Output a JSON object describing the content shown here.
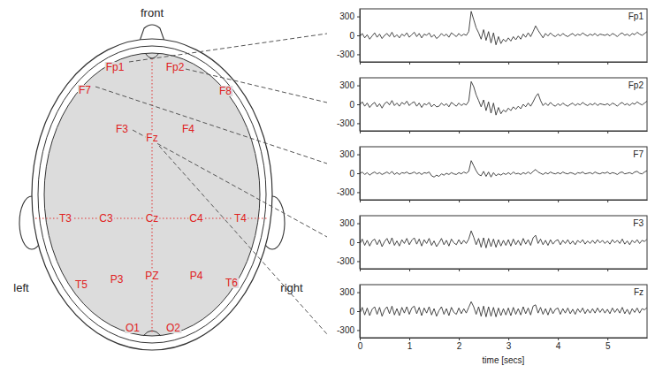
{
  "diagram": {
    "front": "front",
    "left": "left",
    "right": "right",
    "electrodes": [
      "Fp1",
      "Fp2",
      "F7",
      "F8",
      "F3",
      "Fz",
      "F4",
      "T3",
      "C3",
      "Cz",
      "C4",
      "T4",
      "T5",
      "P3",
      "PZ",
      "P4",
      "T6",
      "O1",
      "O2"
    ]
  },
  "chart_data": [
    {
      "type": "line",
      "title": "Fp1",
      "color": "#333333",
      "x": [
        0,
        0.05,
        0.1,
        0.15,
        0.2,
        0.25,
        0.3,
        0.35,
        0.4,
        0.45,
        0.5,
        0.55,
        0.6,
        0.65,
        0.7,
        0.75,
        0.8,
        0.85,
        0.9,
        0.95,
        1,
        1.05,
        1.1,
        1.15,
        1.2,
        1.25,
        1.3,
        1.35,
        1.4,
        1.45,
        1.5,
        1.55,
        1.6,
        1.65,
        1.7,
        1.75,
        1.8,
        1.85,
        1.9,
        1.95,
        2,
        2.05,
        2.1,
        2.15,
        2.2,
        2.25,
        2.3,
        2.35,
        2.4,
        2.45,
        2.5,
        2.55,
        2.6,
        2.65,
        2.7,
        2.75,
        2.8,
        2.85,
        2.9,
        2.95,
        3,
        3.05,
        3.1,
        3.15,
        3.2,
        3.25,
        3.3,
        3.35,
        3.4,
        3.45,
        3.5,
        3.55,
        3.6,
        3.65,
        3.7,
        3.75,
        3.8,
        3.85,
        3.9,
        3.95,
        4,
        4.05,
        4.1,
        4.15,
        4.2,
        4.25,
        4.3,
        4.35,
        4.4,
        4.45,
        4.5,
        4.55,
        4.6,
        4.65,
        4.7,
        4.75,
        4.8,
        4.85,
        4.9,
        4.95,
        5,
        5.05,
        5.1,
        5.15,
        5.2,
        5.25,
        5.3,
        5.35,
        5.4,
        5.45,
        5.5,
        5.55,
        5.6,
        5.65,
        5.7,
        5.75,
        5.8
      ],
      "values": [
        -20,
        30,
        -40,
        10,
        -60,
        -10,
        40,
        -30,
        20,
        -50,
        0,
        30,
        -20,
        50,
        -30,
        10,
        -40,
        20,
        -10,
        40,
        -30,
        10,
        50,
        -20,
        30,
        -40,
        20,
        0,
        40,
        -30,
        10,
        -50,
        -20,
        30,
        -10,
        20,
        -30,
        40,
        10,
        -20,
        30,
        -10,
        20,
        0,
        60,
        380,
        250,
        120,
        40,
        -60,
        90,
        -80,
        60,
        -120,
        40,
        -150,
        -20,
        -130,
        -60,
        -100,
        -40,
        -90,
        -20,
        -70,
        -10,
        -60,
        20,
        -30,
        40,
        -20,
        60,
        150,
        80,
        20,
        -40,
        30,
        -10,
        40,
        0,
        -20,
        20,
        -10,
        30,
        0,
        -20,
        10,
        30,
        -10,
        20,
        0,
        40,
        10,
        -10,
        20,
        0,
        30,
        -10,
        20,
        10,
        0,
        20,
        -10,
        30,
        10,
        -20,
        20,
        40,
        0,
        20,
        -10,
        30,
        10,
        50,
        20,
        0,
        30,
        60
      ],
      "xlim": [
        0,
        5.8
      ],
      "ylim": [
        -420,
        420
      ],
      "xticks": [
        0,
        1,
        2,
        3,
        4,
        5
      ],
      "yticks": [
        -300,
        0,
        300
      ],
      "tick_labels": "y"
    },
    {
      "type": "line",
      "title": "Fp2",
      "color": "#333333",
      "x": [
        0,
        0.05,
        0.1,
        0.15,
        0.2,
        0.25,
        0.3,
        0.35,
        0.4,
        0.45,
        0.5,
        0.55,
        0.6,
        0.65,
        0.7,
        0.75,
        0.8,
        0.85,
        0.9,
        0.95,
        1,
        1.05,
        1.1,
        1.15,
        1.2,
        1.25,
        1.3,
        1.35,
        1.4,
        1.45,
        1.5,
        1.55,
        1.6,
        1.65,
        1.7,
        1.75,
        1.8,
        1.85,
        1.9,
        1.95,
        2,
        2.05,
        2.1,
        2.15,
        2.2,
        2.25,
        2.3,
        2.35,
        2.4,
        2.45,
        2.5,
        2.55,
        2.6,
        2.65,
        2.7,
        2.75,
        2.8,
        2.85,
        2.9,
        2.95,
        3,
        3.05,
        3.1,
        3.15,
        3.2,
        3.25,
        3.3,
        3.35,
        3.4,
        3.45,
        3.5,
        3.55,
        3.6,
        3.65,
        3.7,
        3.75,
        3.8,
        3.85,
        3.9,
        3.95,
        4,
        4.05,
        4.1,
        4.15,
        4.2,
        4.25,
        4.3,
        4.35,
        4.4,
        4.45,
        4.5,
        4.55,
        4.6,
        4.65,
        4.7,
        4.75,
        4.8,
        4.85,
        4.9,
        4.95,
        5,
        5.05,
        5.1,
        5.15,
        5.2,
        5.25,
        5.3,
        5.35,
        5.4,
        5.45,
        5.5,
        5.55,
        5.6,
        5.65,
        5.7,
        5.75,
        5.8
      ],
      "values": [
        -10,
        40,
        -30,
        20,
        -50,
        0,
        30,
        -40,
        10,
        -60,
        10,
        40,
        -10,
        60,
        -20,
        20,
        -30,
        30,
        0,
        50,
        -20,
        20,
        40,
        -30,
        20,
        -50,
        10,
        -10,
        30,
        -40,
        0,
        -40,
        -30,
        20,
        -20,
        10,
        -40,
        30,
        0,
        -30,
        20,
        -20,
        10,
        -10,
        50,
        360,
        280,
        150,
        60,
        -40,
        70,
        -100,
        40,
        -140,
        20,
        -170,
        -50,
        -150,
        -90,
        -120,
        -60,
        -100,
        -40,
        -80,
        -30,
        -70,
        0,
        -40,
        20,
        -30,
        40,
        120,
        170,
        60,
        -20,
        20,
        -20,
        30,
        -10,
        -30,
        10,
        -20,
        20,
        -10,
        -30,
        0,
        20,
        -20,
        10,
        -10,
        30,
        0,
        -20,
        10,
        -10,
        20,
        -20,
        10,
        0,
        -10,
        10,
        -20,
        20,
        0,
        -30,
        10,
        30,
        -10,
        10,
        -20,
        20,
        0,
        40,
        10,
        -10,
        20,
        50
      ],
      "xlim": [
        0,
        5.8
      ],
      "ylim": [
        -420,
        420
      ],
      "xticks": [
        0,
        1,
        2,
        3,
        4,
        5
      ],
      "yticks": [
        -300,
        0,
        300
      ],
      "tick_labels": "y"
    },
    {
      "type": "line",
      "title": "F7",
      "color": "#333333",
      "x": [
        0,
        0.05,
        0.1,
        0.15,
        0.2,
        0.25,
        0.3,
        0.35,
        0.4,
        0.45,
        0.5,
        0.55,
        0.6,
        0.65,
        0.7,
        0.75,
        0.8,
        0.85,
        0.9,
        0.95,
        1,
        1.05,
        1.1,
        1.15,
        1.2,
        1.25,
        1.3,
        1.35,
        1.4,
        1.45,
        1.5,
        1.55,
        1.6,
        1.65,
        1.7,
        1.75,
        1.8,
        1.85,
        1.9,
        1.95,
        2,
        2.05,
        2.1,
        2.15,
        2.2,
        2.25,
        2.3,
        2.35,
        2.4,
        2.45,
        2.5,
        2.55,
        2.6,
        2.65,
        2.7,
        2.75,
        2.8,
        2.85,
        2.9,
        2.95,
        3,
        3.05,
        3.1,
        3.15,
        3.2,
        3.25,
        3.3,
        3.35,
        3.4,
        3.45,
        3.5,
        3.55,
        3.6,
        3.65,
        3.7,
        3.75,
        3.8,
        3.85,
        3.9,
        3.95,
        4,
        4.05,
        4.1,
        4.15,
        4.2,
        4.25,
        4.3,
        4.35,
        4.4,
        4.45,
        4.5,
        4.55,
        4.6,
        4.65,
        4.7,
        4.75,
        4.8,
        4.85,
        4.9,
        4.95,
        5,
        5.05,
        5.1,
        5.15,
        5.2,
        5.25,
        5.3,
        5.35,
        5.4,
        5.45,
        5.5,
        5.55,
        5.6,
        5.65,
        5.7,
        5.75,
        5.8
      ],
      "values": [
        -10,
        20,
        -20,
        10,
        -30,
        0,
        20,
        -10,
        10,
        -20,
        0,
        20,
        -10,
        30,
        -20,
        10,
        -20,
        10,
        0,
        20,
        -10,
        0,
        20,
        -10,
        10,
        -20,
        10,
        0,
        20,
        -40,
        -60,
        -30,
        -50,
        -10,
        -30,
        0,
        -20,
        10,
        -10,
        -20,
        10,
        -10,
        20,
        0,
        30,
        200,
        120,
        40,
        -20,
        -40,
        30,
        -50,
        20,
        -60,
        10,
        -40,
        -10,
        -30,
        0,
        -20,
        10,
        -20,
        20,
        -10,
        0,
        -20,
        10,
        -10,
        20,
        -10,
        30,
        60,
        20,
        0,
        -20,
        10,
        -10,
        20,
        0,
        -10,
        10,
        -10,
        20,
        0,
        -10,
        10,
        0,
        -20,
        10,
        0,
        20,
        -10,
        0,
        10,
        -10,
        20,
        0,
        -10,
        10,
        0,
        20,
        -10,
        10,
        0,
        -20,
        10,
        20,
        -10,
        0,
        10,
        -10,
        20,
        30,
        0,
        -10,
        20,
        40
      ],
      "xlim": [
        0,
        5.8
      ],
      "ylim": [
        -420,
        420
      ],
      "xticks": [
        0,
        1,
        2,
        3,
        4,
        5
      ],
      "yticks": [
        -300,
        0,
        300
      ],
      "tick_labels": "y"
    },
    {
      "type": "line",
      "title": "F3",
      "color": "#333333",
      "x": [
        0,
        0.05,
        0.1,
        0.15,
        0.2,
        0.25,
        0.3,
        0.35,
        0.4,
        0.45,
        0.5,
        0.55,
        0.6,
        0.65,
        0.7,
        0.75,
        0.8,
        0.85,
        0.9,
        0.95,
        1,
        1.05,
        1.1,
        1.15,
        1.2,
        1.25,
        1.3,
        1.35,
        1.4,
        1.45,
        1.5,
        1.55,
        1.6,
        1.65,
        1.7,
        1.75,
        1.8,
        1.85,
        1.9,
        1.95,
        2,
        2.05,
        2.1,
        2.15,
        2.2,
        2.25,
        2.3,
        2.35,
        2.4,
        2.45,
        2.5,
        2.55,
        2.6,
        2.65,
        2.7,
        2.75,
        2.8,
        2.85,
        2.9,
        2.95,
        3,
        3.05,
        3.1,
        3.15,
        3.2,
        3.25,
        3.3,
        3.35,
        3.4,
        3.45,
        3.5,
        3.55,
        3.6,
        3.65,
        3.7,
        3.75,
        3.8,
        3.85,
        3.9,
        3.95,
        4,
        4.05,
        4.1,
        4.15,
        4.2,
        4.25,
        4.3,
        4.35,
        4.4,
        4.45,
        4.5,
        4.55,
        4.6,
        4.65,
        4.7,
        4.75,
        4.8,
        4.85,
        4.9,
        4.95,
        5,
        5.05,
        5.1,
        5.15,
        5.2,
        5.25,
        5.3,
        5.35,
        5.4,
        5.45,
        5.5,
        5.55,
        5.6,
        5.65,
        5.7,
        5.75,
        5.8
      ],
      "values": [
        -30,
        50,
        -50,
        30,
        -60,
        20,
        50,
        -40,
        40,
        -70,
        10,
        60,
        -30,
        70,
        -50,
        20,
        -60,
        40,
        -20,
        60,
        -40,
        30,
        70,
        -30,
        50,
        -60,
        40,
        -20,
        60,
        -50,
        20,
        -70,
        -10,
        60,
        -40,
        30,
        -60,
        50,
        -10,
        -40,
        40,
        -30,
        30,
        -20,
        50,
        180,
        80,
        -40,
        60,
        -80,
        70,
        -90,
        60,
        -70,
        50,
        -80,
        40,
        -60,
        30,
        -50,
        40,
        -60,
        50,
        -40,
        30,
        -50,
        60,
        -30,
        40,
        -50,
        70,
        110,
        -20,
        50,
        -40,
        30,
        -50,
        40,
        -30,
        20,
        40,
        -40,
        30,
        -20,
        40,
        -30,
        20,
        -40,
        30,
        -10,
        40,
        -30,
        20,
        -20,
        30,
        -20,
        40,
        -10,
        30,
        -20,
        20,
        -30,
        40,
        -10,
        30,
        -20,
        50,
        -30,
        20,
        -40,
        30,
        -10,
        40,
        -20,
        30,
        10,
        50
      ],
      "xlim": [
        0,
        5.8
      ],
      "ylim": [
        -420,
        420
      ],
      "xticks": [
        0,
        1,
        2,
        3,
        4,
        5
      ],
      "yticks": [
        -300,
        0,
        300
      ],
      "tick_labels": "y"
    },
    {
      "type": "line",
      "title": "Fz",
      "color": "#333333",
      "x_label": "time [secs]",
      "x": [
        0,
        0.05,
        0.1,
        0.15,
        0.2,
        0.25,
        0.3,
        0.35,
        0.4,
        0.45,
        0.5,
        0.55,
        0.6,
        0.65,
        0.7,
        0.75,
        0.8,
        0.85,
        0.9,
        0.95,
        1,
        1.05,
        1.1,
        1.15,
        1.2,
        1.25,
        1.3,
        1.35,
        1.4,
        1.45,
        1.5,
        1.55,
        1.6,
        1.65,
        1.7,
        1.75,
        1.8,
        1.85,
        1.9,
        1.95,
        2,
        2.05,
        2.1,
        2.15,
        2.2,
        2.25,
        2.3,
        2.35,
        2.4,
        2.45,
        2.5,
        2.55,
        2.6,
        2.65,
        2.7,
        2.75,
        2.8,
        2.85,
        2.9,
        2.95,
        3,
        3.05,
        3.1,
        3.15,
        3.2,
        3.25,
        3.3,
        3.35,
        3.4,
        3.45,
        3.5,
        3.55,
        3.6,
        3.65,
        3.7,
        3.75,
        3.8,
        3.85,
        3.9,
        3.95,
        4,
        4.05,
        4.1,
        4.15,
        4.2,
        4.25,
        4.3,
        4.35,
        4.4,
        4.45,
        4.5,
        4.55,
        4.6,
        4.65,
        4.7,
        4.75,
        4.8,
        4.85,
        4.9,
        4.95,
        5,
        5.05,
        5.1,
        5.15,
        5.2,
        5.25,
        5.3,
        5.35,
        5.4,
        5.45,
        5.5,
        5.55,
        5.6,
        5.65,
        5.7,
        5.75,
        5.8
      ],
      "values": [
        -40,
        60,
        -60,
        50,
        -70,
        30,
        70,
        -50,
        60,
        -80,
        20,
        70,
        -40,
        80,
        -60,
        40,
        -70,
        60,
        -30,
        70,
        -50,
        50,
        80,
        -40,
        60,
        -70,
        50,
        -30,
        70,
        -60,
        40,
        -80,
        10,
        70,
        -50,
        40,
        -70,
        60,
        -20,
        -50,
        50,
        -40,
        40,
        -30,
        60,
        150,
        70,
        -50,
        70,
        -80,
        80,
        -90,
        70,
        -80,
        60,
        -90,
        50,
        -70,
        40,
        -60,
        50,
        -70,
        60,
        -50,
        40,
        -60,
        70,
        -40,
        50,
        -60,
        80,
        100,
        -30,
        60,
        -50,
        40,
        -60,
        50,
        -40,
        30,
        50,
        -50,
        40,
        -30,
        50,
        -40,
        30,
        -50,
        40,
        -20,
        50,
        -40,
        30,
        -30,
        40,
        -30,
        50,
        -20,
        40,
        -30,
        30,
        -40,
        50,
        -20,
        40,
        -30,
        60,
        -40,
        30,
        -50,
        40,
        -20,
        50,
        -30,
        40,
        20,
        60
      ],
      "xlim": [
        0,
        5.8
      ],
      "ylim": [
        -420,
        420
      ],
      "xticks": [
        0,
        1,
        2,
        3,
        4,
        5
      ],
      "yticks": [
        -300,
        0,
        300
      ]
    }
  ]
}
